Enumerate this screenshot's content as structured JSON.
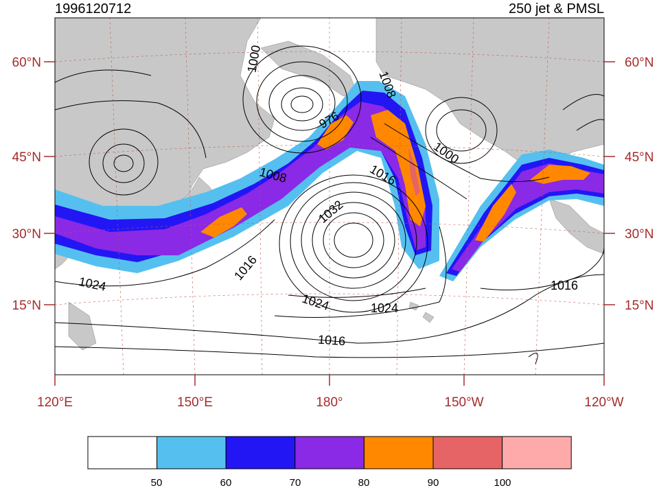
{
  "title_left": "1996120712",
  "title_right": "250 jet & PMSL",
  "lat_labels": [
    "60°N",
    "45°N",
    "30°N",
    "15°N"
  ],
  "lon_labels": [
    "120°E",
    "150°E",
    "180°",
    "150°W",
    "120°W"
  ],
  "colorbar": {
    "labels": [
      "50",
      "60",
      "70",
      "80",
      "90",
      "100"
    ],
    "colors": [
      "#ffffff",
      "#55c0ef",
      "#2216f5",
      "#8a29e6",
      "#ff8800",
      "#e66465",
      "#ffaaaa"
    ]
  },
  "contour_labels": [
    "1000",
    "1008",
    "976",
    "1016",
    "1000",
    "1032",
    "1008",
    "1016",
    "1024",
    "1024",
    "1024",
    "1016",
    "1016"
  ],
  "colors": {
    "land": "#c8c8c8",
    "lat_lon_label": "#a52a2a",
    "grid": "#c0564f"
  }
}
